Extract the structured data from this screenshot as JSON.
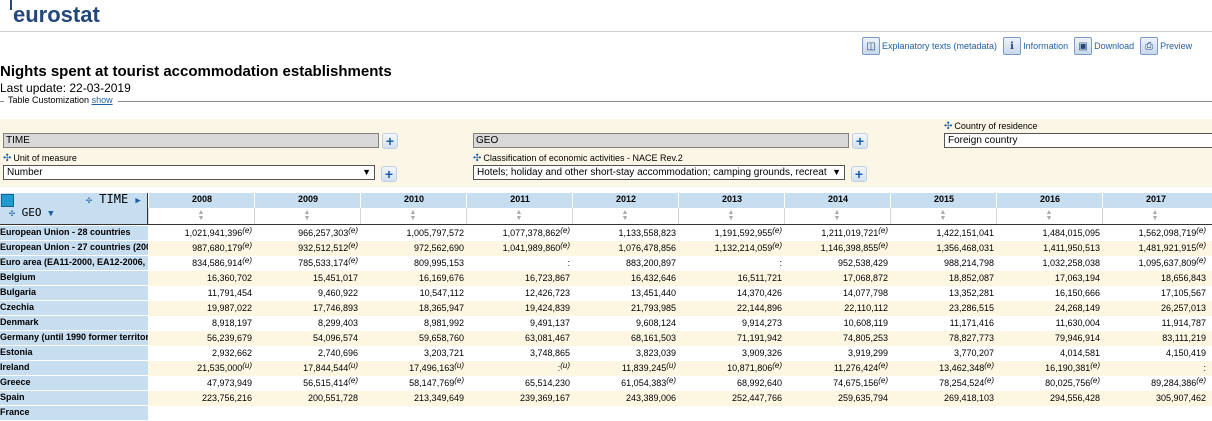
{
  "brand": {
    "logo_text": "eurostat"
  },
  "toolbar": [
    {
      "icon": "metadata-icon",
      "glyph": "◫",
      "label": "Explanatory texts (metadata)"
    },
    {
      "icon": "info-icon",
      "glyph": "ℹ",
      "label": "Information"
    },
    {
      "icon": "save-icon",
      "glyph": "▣",
      "label": "Download"
    },
    {
      "icon": "print-icon",
      "glyph": "⎙",
      "label": "Preview"
    }
  ],
  "page": {
    "title": "Nights spent at tourist accommodation establishments",
    "last_update": "Last update: 22-03-2019",
    "customization_label": "Table Customization",
    "customization_link": "show"
  },
  "dimensions": {
    "time_box": "TIME",
    "geo_box": "GEO",
    "country_residence_label": "Country of residence",
    "country_residence_value": "Foreign country",
    "unit_label": "Unit of measure",
    "unit_value": "Number",
    "nace_label": "Classification of economic activities - NACE Rev.2",
    "nace_value": "Hotels; holiday and other short-stay accommodation; camping grounds, recreat",
    "plus": "+",
    "arrow": "▼",
    "move_glyph": "✣"
  },
  "table": {
    "time_header": "TIME",
    "geo_header": "GEO",
    "years": [
      "2008",
      "2009",
      "2010",
      "2011",
      "2012",
      "2013",
      "2014",
      "2015",
      "2016",
      "2017"
    ],
    "rows": [
      {
        "label": "European Union - 28 countries",
        "values": [
          [
            "1,021,941,396",
            "(e)"
          ],
          [
            "966,257,303",
            "(e)"
          ],
          [
            "1,005,797,572",
            ""
          ],
          [
            "1,077,378,862",
            "(e)"
          ],
          [
            "1,133,558,823",
            ""
          ],
          [
            "1,191,592,955",
            "(e)"
          ],
          [
            "1,211,019,721",
            "(e)"
          ],
          [
            "1,422,151,041",
            ""
          ],
          [
            "1,484,015,095",
            ""
          ],
          [
            "1,562,098,719",
            "(e)"
          ]
        ]
      },
      {
        "label": "European Union - 27 countries (200",
        "values": [
          [
            "987,680,179",
            "(e)"
          ],
          [
            "932,512,512",
            "(e)"
          ],
          [
            "972,562,690",
            ""
          ],
          [
            "1,041,989,860",
            "(e)"
          ],
          [
            "1,076,478,856",
            ""
          ],
          [
            "1,132,214,059",
            "(e)"
          ],
          [
            "1,146,398,855",
            "(e)"
          ],
          [
            "1,356,468,031",
            ""
          ],
          [
            "1,411,950,513",
            ""
          ],
          [
            "1,481,921,915",
            "(e)"
          ]
        ]
      },
      {
        "label": "Euro area (EA11-2000, EA12-2006, E",
        "values": [
          [
            "834,586,914",
            "(e)"
          ],
          [
            "785,533,174",
            "(e)"
          ],
          [
            "809,995,153",
            ""
          ],
          [
            ":",
            ""
          ],
          [
            "883,200,897",
            ""
          ],
          [
            ":",
            ""
          ],
          [
            "952,538,429",
            ""
          ],
          [
            "988,214,798",
            ""
          ],
          [
            "1,032,258,038",
            ""
          ],
          [
            "1,095,637,809",
            "(e)"
          ]
        ]
      },
      {
        "label": "Belgium",
        "values": [
          [
            "16,360,702",
            ""
          ],
          [
            "15,451,017",
            ""
          ],
          [
            "16,169,676",
            ""
          ],
          [
            "16,723,867",
            ""
          ],
          [
            "16,432,646",
            ""
          ],
          [
            "16,511,721",
            ""
          ],
          [
            "17,068,872",
            ""
          ],
          [
            "18,852,087",
            ""
          ],
          [
            "17,063,194",
            ""
          ],
          [
            "18,656,843",
            ""
          ]
        ]
      },
      {
        "label": "Bulgaria",
        "values": [
          [
            "11,791,454",
            ""
          ],
          [
            "9,460,922",
            ""
          ],
          [
            "10,547,112",
            ""
          ],
          [
            "12,426,723",
            ""
          ],
          [
            "13,451,440",
            ""
          ],
          [
            "14,370,426",
            ""
          ],
          [
            "14,077,798",
            ""
          ],
          [
            "13,352,281",
            ""
          ],
          [
            "16,150,666",
            ""
          ],
          [
            "17,105,567",
            ""
          ]
        ]
      },
      {
        "label": "Czechia",
        "values": [
          [
            "19,987,022",
            ""
          ],
          [
            "17,746,893",
            ""
          ],
          [
            "18,365,947",
            ""
          ],
          [
            "19,424,839",
            ""
          ],
          [
            "21,793,985",
            ""
          ],
          [
            "22,144,896",
            ""
          ],
          [
            "22,110,112",
            ""
          ],
          [
            "23,286,515",
            ""
          ],
          [
            "24,268,149",
            ""
          ],
          [
            "26,257,013",
            ""
          ]
        ]
      },
      {
        "label": "Denmark",
        "values": [
          [
            "8,918,197",
            ""
          ],
          [
            "8,299,403",
            ""
          ],
          [
            "8,981,992",
            ""
          ],
          [
            "9,491,137",
            ""
          ],
          [
            "9,608,124",
            ""
          ],
          [
            "9,914,273",
            ""
          ],
          [
            "10,608,119",
            ""
          ],
          [
            "11,171,416",
            ""
          ],
          [
            "11,630,004",
            ""
          ],
          [
            "11,914,787",
            ""
          ]
        ]
      },
      {
        "label": "Germany (until 1990 former territor",
        "values": [
          [
            "56,239,679",
            ""
          ],
          [
            "54,096,574",
            ""
          ],
          [
            "59,658,760",
            ""
          ],
          [
            "63,081,467",
            ""
          ],
          [
            "68,161,503",
            ""
          ],
          [
            "71,191,942",
            ""
          ],
          [
            "74,805,253",
            ""
          ],
          [
            "78,827,773",
            ""
          ],
          [
            "79,946,914",
            ""
          ],
          [
            "83,111,219",
            ""
          ]
        ]
      },
      {
        "label": "Estonia",
        "values": [
          [
            "2,932,662",
            ""
          ],
          [
            "2,740,696",
            ""
          ],
          [
            "3,203,721",
            ""
          ],
          [
            "3,748,865",
            ""
          ],
          [
            "3,823,039",
            ""
          ],
          [
            "3,909,326",
            ""
          ],
          [
            "3,919,299",
            ""
          ],
          [
            "3,770,207",
            ""
          ],
          [
            "4,014,581",
            ""
          ],
          [
            "4,150,419",
            ""
          ]
        ]
      },
      {
        "label": "Ireland",
        "values": [
          [
            "21,535,000",
            "(u)"
          ],
          [
            "17,844,544",
            "(u)"
          ],
          [
            "17,496,163",
            "(u)"
          ],
          [
            ":",
            "(u)"
          ],
          [
            "11,839,245",
            "(u)"
          ],
          [
            "10,871,806",
            "(e)"
          ],
          [
            "11,276,424",
            "(e)"
          ],
          [
            "13,462,348",
            "(e)"
          ],
          [
            "16,190,381",
            "(e)"
          ],
          [
            ":",
            ""
          ]
        ]
      },
      {
        "label": "Greece",
        "values": [
          [
            "47,973,949",
            ""
          ],
          [
            "56,515,414",
            "(e)"
          ],
          [
            "58,147,769",
            "(e)"
          ],
          [
            "65,514,230",
            ""
          ],
          [
            "61,054,383",
            "(e)"
          ],
          [
            "68,992,640",
            ""
          ],
          [
            "74,675,156",
            "(e)"
          ],
          [
            "78,254,524",
            "(e)"
          ],
          [
            "80,025,756",
            "(e)"
          ],
          [
            "89,284,386",
            "(e)"
          ]
        ]
      },
      {
        "label": "Spain",
        "values": [
          [
            "223,756,216",
            ""
          ],
          [
            "200,551,728",
            ""
          ],
          [
            "213,349,649",
            ""
          ],
          [
            "239,369,167",
            ""
          ],
          [
            "243,389,006",
            ""
          ],
          [
            "252,447,766",
            ""
          ],
          [
            "259,635,794",
            ""
          ],
          [
            "269,418,103",
            ""
          ],
          [
            "294,556,428",
            ""
          ],
          [
            "305,907,462",
            ""
          ]
        ]
      },
      {
        "label": "France",
        "values": [
          [
            "",
            ""
          ],
          [
            "",
            ""
          ],
          [
            "",
            ""
          ],
          [
            "",
            ""
          ],
          [
            "",
            ""
          ],
          [
            "",
            ""
          ],
          [
            "",
            ""
          ],
          [
            "",
            ""
          ],
          [
            "",
            ""
          ],
          [
            "",
            ""
          ]
        ]
      }
    ]
  }
}
